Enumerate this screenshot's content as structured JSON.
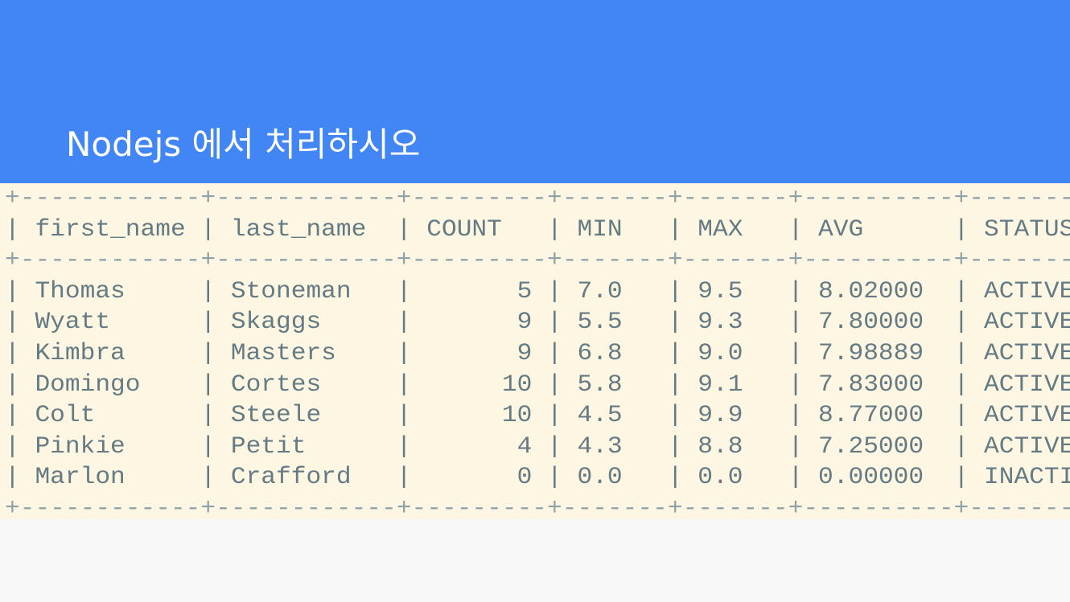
{
  "title": "Nodejs 에서 처리하시오",
  "table": {
    "separator": "+------------+------------+---------+-------+-------+----------+-----------+",
    "header": "| first_name | last_name  | COUNT   | MIN   | MAX   | AVG      | STATUS    |",
    "rows": [
      "| Thomas     | Stoneman   |       5 | 7.0   | 9.5   | 8.02000  | ACTIVE    |",
      "| Wyatt      | Skaggs     |       9 | 5.5   | 9.3   | 7.80000  | ACTIVE    |",
      "| Kimbra     | Masters    |       9 | 6.8   | 9.0   | 7.98889  | ACTIVE    |",
      "| Domingo    | Cortes     |      10 | 5.8   | 9.1   | 7.83000  | ACTIVE    |",
      "| Colt       | Steele     |      10 | 4.5   | 9.9   | 8.77000  | ACTIVE    |",
      "| Pinkie     | Petit      |       4 | 4.3   | 8.8   | 7.25000  | ACTIVE    |",
      "| Marlon     | Crafford   |       0 | 0.0   | 0.0   | 0.00000  | INACTIVE  |"
    ]
  }
}
